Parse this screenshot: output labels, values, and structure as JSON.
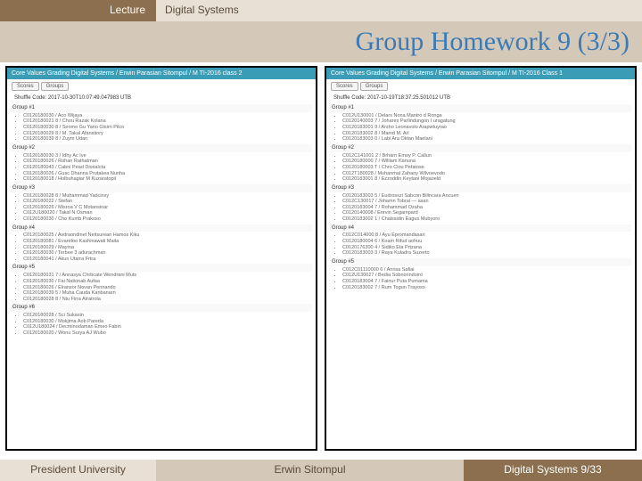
{
  "header": {
    "lecture": "Lecture",
    "course": "Digital Systems"
  },
  "title": "Group Homework 9 (3/3)",
  "panels": [
    {
      "head": "Core Values Grading Digital Systems / Erwin Parasian Sitompul / M TI-2016 class 2",
      "tabs": [
        "Scores",
        "Groups"
      ],
      "shuffle": "Shuffle Code:   2017-10-30T10:07:49.047983 UTB",
      "groups": [
        {
          "name": "Group #1",
          "members": [
            "C0120180030 / Aco Wijaya",
            "C0120180021 8 / Chou Razak Kolana",
            "C0120180030 8 / Seomo Gu Yano Gisirn Pilco",
            "C0120180029 8 / M. Takal Afanstiory",
            "C0120180039 8 / Zuym Udan"
          ]
        },
        {
          "name": "Group #2",
          "members": [
            "C0120180030 3 / Idhy Ac Ive",
            "C0120180026 / Rohan Rathatman",
            "C0120180043 / Cabni Pead Diosalcta",
            "C0120180026 / Gusc Dhanna Prutakea Nunha",
            "C0120180018 / Holbuhagiar M Kuzaratopil"
          ]
        },
        {
          "name": "Group #3",
          "members": [
            "C0120180028 8 / Muhammad Yadcinsy",
            "C0120180022 / Stefan",
            "C0120180026 / Misroa V C Motansinar",
            "C012U180020 / Takal N Osman",
            "C0120180030 / Cho Kumb Prakoso"
          ]
        },
        {
          "name": "Group #4",
          "members": [
            "C0120180025 / Avdraondinet Neitsurean Hamos Kiku",
            "C0120180081 / Evaretoo Kashinawati Maita",
            "C0120180029 / Mayina",
            "C0120180030 / Terbee 3 adurachman",
            "C0120180041 / Akun Utarra Frtra"
          ]
        },
        {
          "name": "Group #5",
          "members": [
            "C0120180031 7 / Annasya Chrbcate Wendrani Muts",
            "C0120180030 / Fai Nationab Aufaa",
            "C0120180026 / Elranzor Novan Pennando",
            "C0120180039 5 / Muha Cauda Kanbanarn",
            "C0120180028 8 / Niu Firra Atratrola"
          ]
        },
        {
          "name": "Group #6",
          "members": [
            "C0120180028 / Sci Sukasin",
            "C0120180030 / Mokjima Aob Pareda",
            "C012U180024 / Decminodaman Emeo Fabin",
            "C0120180020 / Wonu Surya AJ Wubo"
          ]
        }
      ]
    },
    {
      "head": "Core Values Grading Digital Systems / Erwin Parasian Sitompul / M TI-2016 Class 1",
      "tabs": [
        "Scores",
        "Groups"
      ],
      "shuffle": "Shuffle Code:   2017-10-19T18:37:25.501012 UTB",
      "groups": [
        {
          "name": "Group #1",
          "members": [
            "C012U130001 / Delars Nona Mantro d Ronga",
            "C0120140003 7 / Johares Parlindungon I uragatung",
            "C0120183001 9 / Arsho Leonavolo Arapwtuyrao",
            "C0120183002 8 / Mamd M. Arl",
            "C0120183003 0 / Labi Ara Oktan Maelani"
          ]
        },
        {
          "name": "Group #2",
          "members": [
            "C012C141001 2 / Brharn Emoy P. Callun",
            "C0120180000 7 / William Kanuna",
            "C0120180003 T / Chro Clou Pefatose",
            "C012T180028 / Muhanmal Zahany Wilvoevodo",
            "C0120183001 8 / Ezzoddin Keytani Mojaoeld"
          ]
        },
        {
          "name": "Group #3",
          "members": [
            "C0120183003 5 / Eudrosszi Sabcon Bilincara Ancuen",
            "C012C130017 / Johamn Tobrai — asan",
            "C0120183004 7 / Rohammad Ozaha",
            "C0120140008 / Enrvin Segampard",
            "C0120183002 1 / Chaissidin Eagus Mubyoro"
          ]
        },
        {
          "name": "Group #4",
          "members": [
            "C012C014000.8 / Ayu Epromandasari",
            "C0120180004 6 / Koam Rifud aohuu",
            "C0120176300 4 / Sidiko Eta Prtzana",
            "C0120183003 3 / Raya Kuladra Suzerto"
          ]
        },
        {
          "name": "Group #5",
          "members": [
            "C012C01110000 6 / Anrisa Safiai",
            "C012U130027 / Bedia Sobnorindoiro",
            "C0120183004 7 / Fainur Puta Pumama",
            "C0120183002 7 / Rum Togun Trayoso"
          ]
        }
      ]
    }
  ],
  "footer": {
    "left": "President University",
    "center": "Erwin Sitompul",
    "right": "Digital Systems 9/33"
  },
  "colors": {
    "brown_dark": "#8b6f4e",
    "brown_light": "#d4c8b8",
    "beige": "#e8e0d5",
    "title_blue": "#3a7ab5",
    "teal": "#3a9db5"
  }
}
